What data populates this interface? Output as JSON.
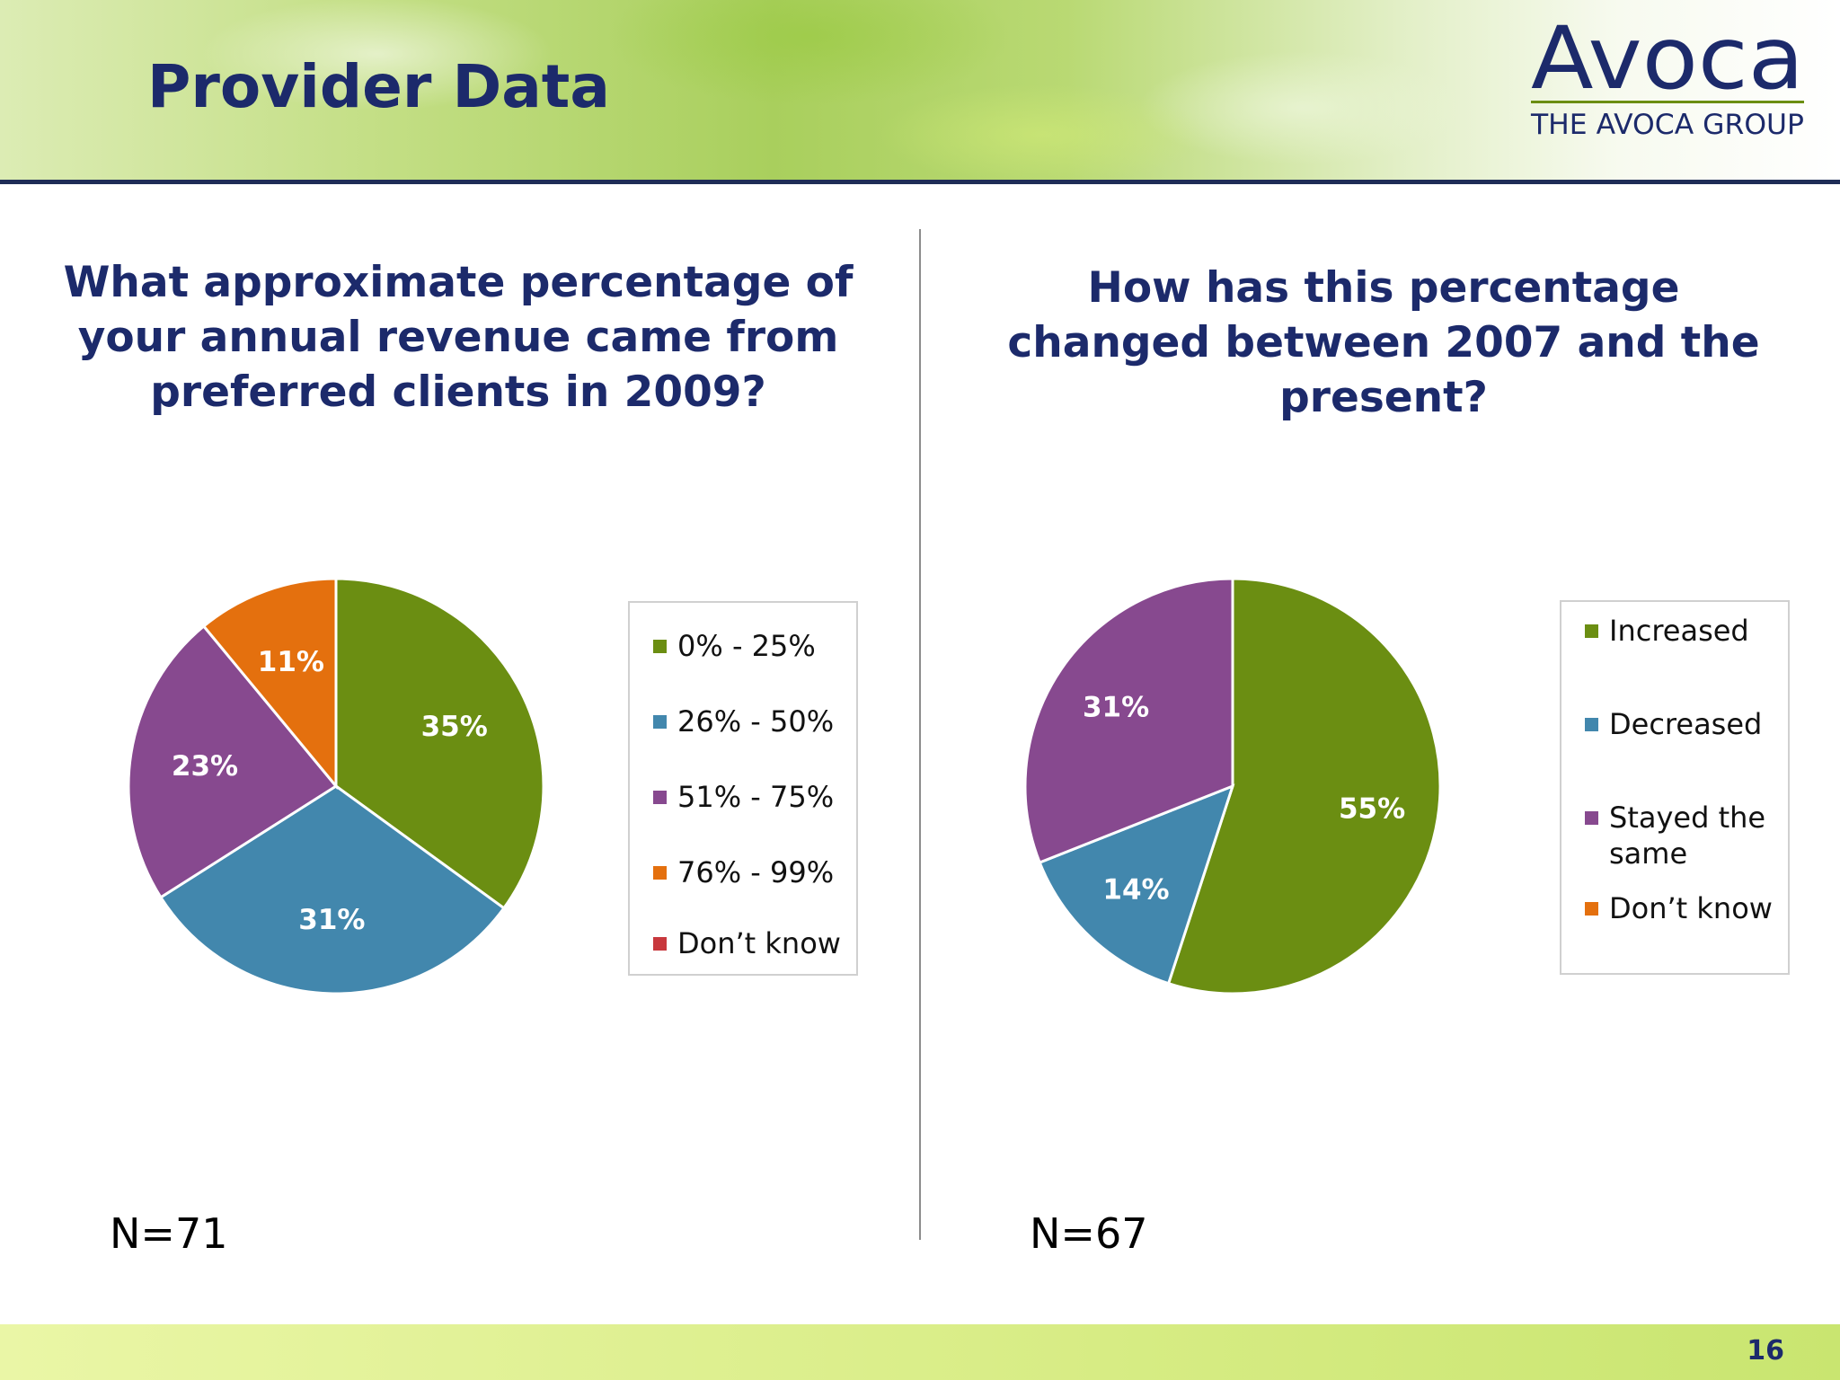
{
  "slide": {
    "title": "Provider Data",
    "page_number": "16"
  },
  "logo": {
    "wordmark": "Avoca",
    "tagline": "THE AVOCA GROUP"
  },
  "colors": {
    "title_navy": "#1c2a6b",
    "green": "#6b8e12",
    "blue": "#4287ad",
    "purple": "#87498f",
    "orange": "#e4700e",
    "red": "#c8383d"
  },
  "chart_data": [
    {
      "type": "pie",
      "title": "What approximate percentage of your annual revenue came from preferred clients in 2009?",
      "sample_size": "N=71",
      "legend_position": "right",
      "slices": [
        {
          "label": "0% - 25%",
          "value": 35,
          "display": "35%",
          "color": "#6b8e12"
        },
        {
          "label": "26% - 50%",
          "value": 31,
          "display": "31%",
          "color": "#4287ad"
        },
        {
          "label": "51% - 75%",
          "value": 23,
          "display": "23%",
          "color": "#87498f"
        },
        {
          "label": "76% - 99%",
          "value": 11,
          "display": "11%",
          "color": "#e4700e"
        },
        {
          "label": "Don’t know",
          "value": 0,
          "display": "",
          "color": "#c8383d"
        }
      ]
    },
    {
      "type": "pie",
      "title": "How has this percentage changed between 2007 and the present?",
      "sample_size": "N=67",
      "legend_position": "right",
      "slices": [
        {
          "label": "Increased",
          "value": 55,
          "display": "55%",
          "color": "#6b8e12"
        },
        {
          "label": "Decreased",
          "value": 14,
          "display": "14%",
          "color": "#4287ad"
        },
        {
          "label": "Stayed the same",
          "value": 31,
          "display": "31%",
          "color": "#87498f"
        },
        {
          "label": "Don’t know",
          "value": 0,
          "display": "",
          "color": "#e4700e"
        }
      ]
    }
  ]
}
